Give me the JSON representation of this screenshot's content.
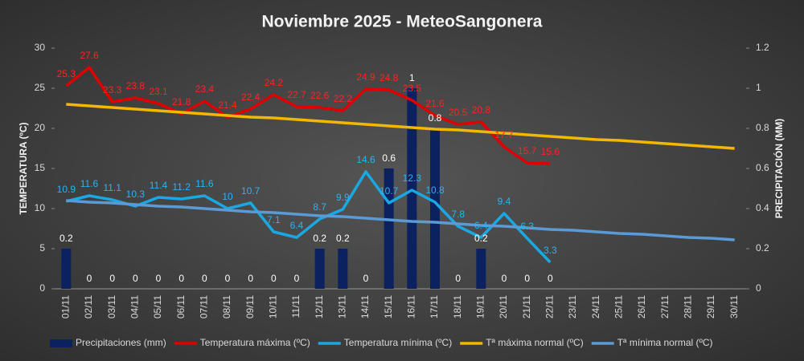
{
  "chart_data": {
    "type": "bar",
    "title": "Noviembre 2025 - MeteoSangonera",
    "ylabel": "TEMPERATURA (ºC)",
    "y2label": "PRECIPITACIÓN (MM)",
    "categories": [
      "01/11",
      "02/11",
      "03/11",
      "04/11",
      "05/11",
      "06/11",
      "07/11",
      "08/11",
      "09/11",
      "10/11",
      "11/11",
      "12/11",
      "13/11",
      "14/11",
      "15/11",
      "16/11",
      "17/11",
      "18/11",
      "19/11",
      "20/11",
      "21/11",
      "22/11",
      "23/11",
      "24/11",
      "25/11",
      "26/11",
      "27/11",
      "28/11",
      "29/11",
      "30/11"
    ],
    "ylim": [
      0,
      30
    ],
    "yticks": [
      0,
      5,
      10,
      15,
      20,
      25,
      30
    ],
    "y2lim": [
      0,
      1.2
    ],
    "y2ticks": [
      0,
      0.2,
      0.4,
      0.6,
      0.8,
      1,
      1.2
    ],
    "legend": "bottom",
    "series": [
      {
        "name": "Precipitaciones (mm)",
        "type": "bar",
        "axis": "y2",
        "color": "#0b2160",
        "label_color": "#ffffff",
        "data_labels": true,
        "values": [
          0.2,
          0,
          0,
          0,
          0,
          0,
          0,
          0,
          0,
          0,
          0,
          0.2,
          0.2,
          0,
          0.6,
          1,
          0.8,
          0,
          0.2,
          0,
          0,
          0,
          null,
          null,
          null,
          null,
          null,
          null,
          null,
          null
        ]
      },
      {
        "name": "Temperatura máxima (ºC)",
        "type": "line",
        "color": "#e00000",
        "label_color": "#ff2222",
        "data_labels": true,
        "values": [
          25.3,
          27.6,
          23.3,
          23.8,
          23.1,
          21.8,
          23.4,
          21.4,
          22.4,
          24.2,
          22.7,
          22.6,
          22.2,
          24.9,
          24.8,
          23.5,
          21.6,
          20.5,
          20.8,
          17.7,
          15.7,
          15.6,
          null,
          null,
          null,
          null,
          null,
          null,
          null,
          null
        ]
      },
      {
        "name": "Temperatura mínima (ºC)",
        "type": "line",
        "color": "#1ba8e2",
        "label_color": "#2ab4f0",
        "data_labels": true,
        "values": [
          10.9,
          11.6,
          11.1,
          10.3,
          11.4,
          11.2,
          11.6,
          10,
          10.7,
          7.1,
          6.4,
          8.7,
          9.9,
          14.6,
          10.7,
          12.3,
          10.8,
          7.8,
          6.4,
          9.4,
          6.3,
          3.3,
          null,
          null,
          null,
          null,
          null,
          null,
          null,
          null
        ]
      },
      {
        "name": "Tª máxima normal (ºC)",
        "type": "line",
        "color": "#f2b800",
        "data_labels": false,
        "values": [
          23.0,
          22.8,
          22.6,
          22.4,
          22.2,
          22.0,
          21.8,
          21.6,
          21.4,
          21.3,
          21.1,
          20.9,
          20.7,
          20.5,
          20.3,
          20.1,
          19.9,
          19.8,
          19.6,
          19.4,
          19.2,
          19.0,
          18.8,
          18.6,
          18.5,
          18.3,
          18.1,
          17.9,
          17.7,
          17.5
        ]
      },
      {
        "name": "Tª mínima normal (ºC)",
        "type": "line",
        "color": "#5b9bd5",
        "data_labels": false,
        "values": [
          11.0,
          10.8,
          10.7,
          10.5,
          10.3,
          10.2,
          10.0,
          9.8,
          9.6,
          9.5,
          9.3,
          9.1,
          9.0,
          8.8,
          8.6,
          8.4,
          8.3,
          8.1,
          7.9,
          7.8,
          7.6,
          7.4,
          7.3,
          7.1,
          6.9,
          6.8,
          6.6,
          6.4,
          6.3,
          6.1
        ]
      }
    ]
  }
}
